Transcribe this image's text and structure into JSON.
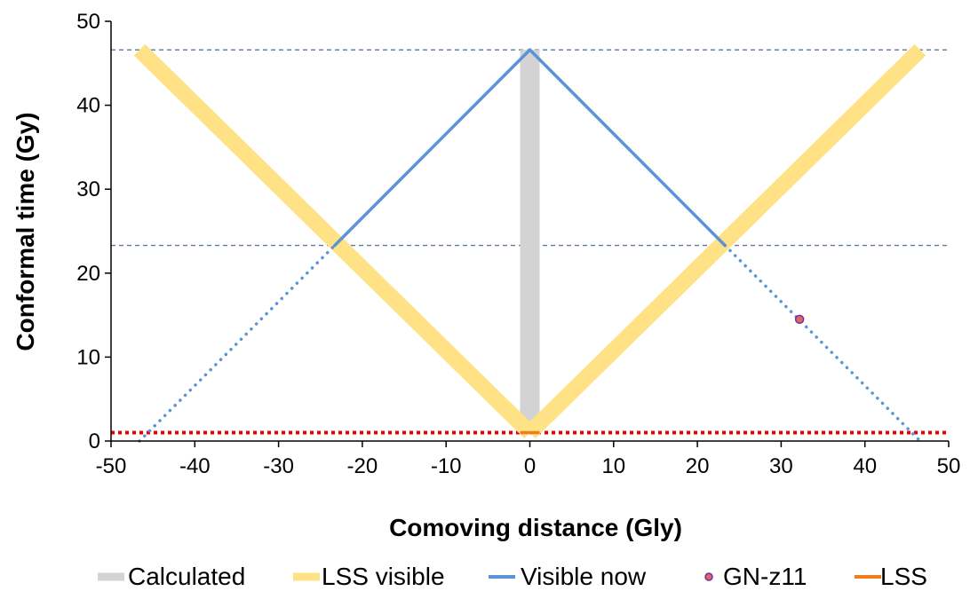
{
  "chart_data": {
    "type": "line",
    "title": "",
    "xlabel": "Comoving distance (Gly)",
    "ylabel": "Conformal time (Gy)",
    "xlim": [
      -50,
      50
    ],
    "ylim": [
      0,
      50
    ],
    "x_ticks": [
      -50,
      -40,
      -30,
      -20,
      -10,
      0,
      10,
      20,
      30,
      40,
      50
    ],
    "y_ticks": [
      0,
      10,
      20,
      30,
      40,
      50
    ],
    "reference_lines": [
      {
        "y": 46.6,
        "style": "dashed",
        "color": "#5b7a99"
      },
      {
        "y": 23.3,
        "style": "dashed",
        "color": "#5b7a99"
      },
      {
        "y": 1.0,
        "style": "dotted",
        "color": "#ee0000"
      }
    ],
    "series": [
      {
        "name": "Calculated",
        "style": "thick-solid",
        "color": "#d3d3d3",
        "points": [
          [
            0,
            1.0
          ],
          [
            0,
            46.6
          ]
        ]
      },
      {
        "name": "LSS visible",
        "style": "thick-solid",
        "color": "#ffe285",
        "segments": [
          [
            [
              -46.6,
              46.6
            ],
            [
              0,
              1.0
            ]
          ],
          [
            [
              0,
              1.0
            ],
            [
              46.6,
              46.6
            ]
          ]
        ]
      },
      {
        "name": "Visible now",
        "style": "solid",
        "color": "#5b93d7",
        "segments": [
          [
            [
              -23.3,
              23.3
            ],
            [
              0,
              46.6
            ]
          ],
          [
            [
              0,
              46.6
            ],
            [
              23.3,
              23.3
            ]
          ]
        ]
      },
      {
        "name": "",
        "style": "dotted",
        "color": "#5b93d7",
        "segments": [
          [
            [
              -46.6,
              0
            ],
            [
              -23.3,
              23.3
            ]
          ],
          [
            [
              23.3,
              23.3
            ],
            [
              46.6,
              0
            ]
          ]
        ]
      },
      {
        "name": "GN-z11",
        "style": "marker",
        "color": "#e06666",
        "edge_color": "#7030a0",
        "points": [
          [
            32.2,
            14.5
          ]
        ]
      },
      {
        "name": "LSS",
        "style": "solid",
        "color": "#f07d1a",
        "points": [
          [
            -1.0,
            1.0
          ],
          [
            1.0,
            1.0
          ]
        ]
      }
    ],
    "legend": {
      "placement": "bottom",
      "entries": [
        {
          "label": "Calculated",
          "symbol": "thick-line",
          "color": "#d3d3d3"
        },
        {
          "label": "LSS visible",
          "symbol": "thick-line",
          "color": "#ffe285"
        },
        {
          "label": "Visible now",
          "symbol": "line",
          "color": "#5b93d7"
        },
        {
          "label": "GN-z11",
          "symbol": "dot",
          "color": "#e06666"
        },
        {
          "label": "LSS",
          "symbol": "line",
          "color": "#f07d1a"
        }
      ]
    },
    "grid": false
  }
}
